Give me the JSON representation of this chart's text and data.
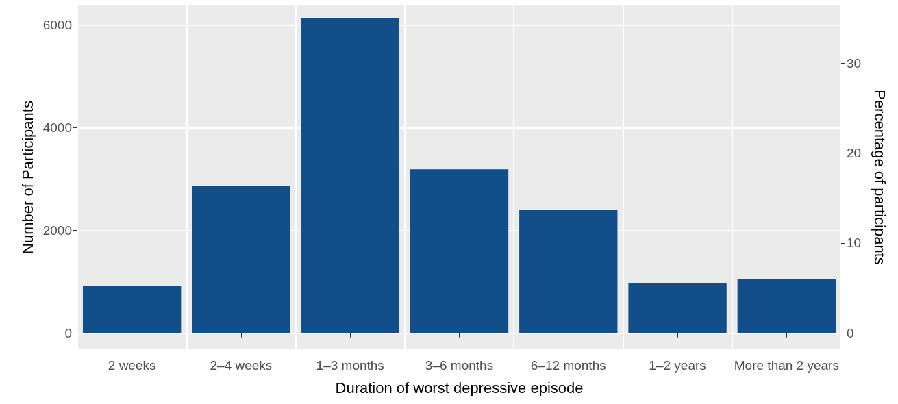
{
  "chart_data": {
    "type": "bar",
    "xlabel": "Duration of worst depressive episode",
    "ylabel": "Number of Participants",
    "y2label": "Percentage of participants",
    "categories": [
      "2 weeks",
      "2–4 weeks",
      "1–3 months",
      "3–6 months",
      "6–12 months",
      "1–2 years",
      "More than 2 years"
    ],
    "values": [
      930,
      2870,
      6130,
      3190,
      2400,
      970,
      1050
    ],
    "color": "#114e8a",
    "ylim": [
      -310,
      6380
    ],
    "yticks": [
      0,
      2000,
      4000,
      6000
    ],
    "y2lim": [
      -1.8,
      36.4
    ],
    "y2ticks": [
      0,
      10,
      20,
      30
    ],
    "grid": true
  }
}
